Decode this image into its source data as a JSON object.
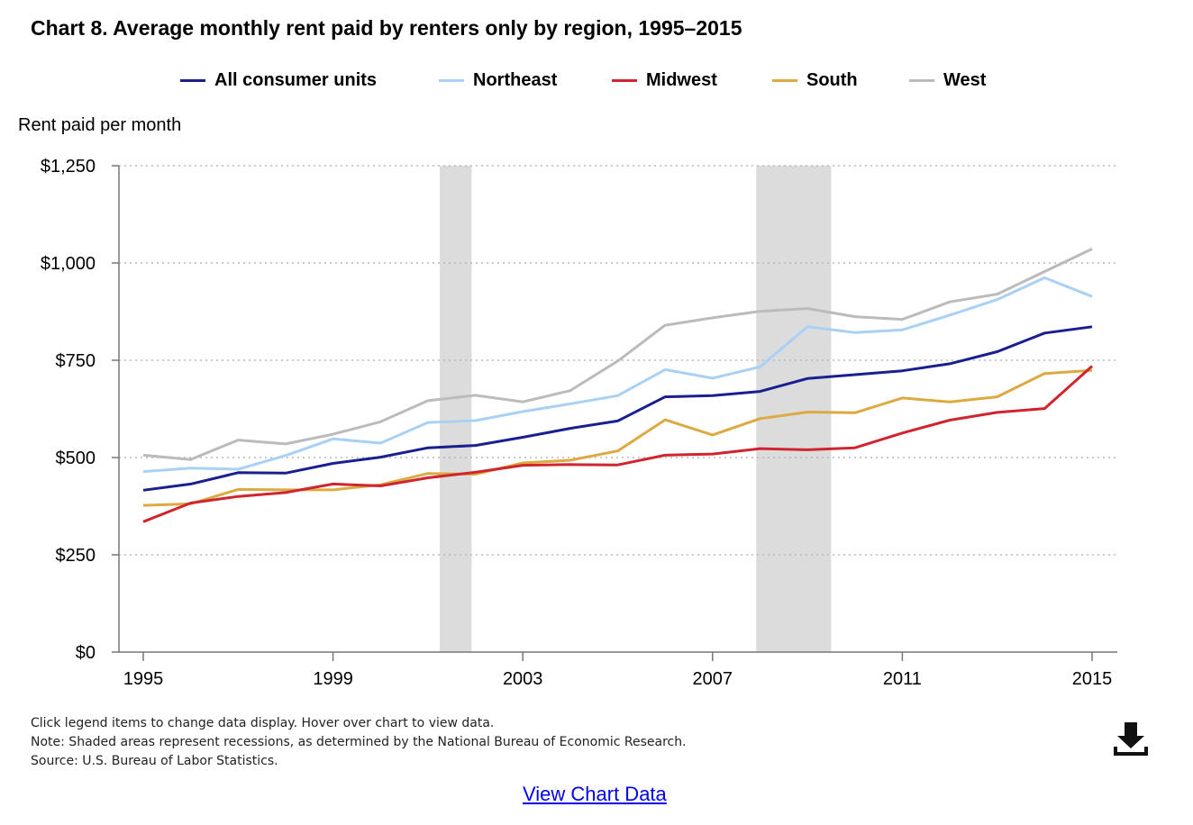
{
  "title": "Chart 8. Average monthly rent paid by renters only by region, 1995–2015",
  "notes": {
    "line1": "Click legend items to change data display. Hover over chart to view data.",
    "line2": "Note: Shaded areas represent recessions, as determined by the National Bureau of Economic Research.",
    "line3": "Source: U.S. Bureau of Labor Statistics."
  },
  "view_link": "View Chart Data",
  "download_icon": "download-icon",
  "chart_data": {
    "type": "line",
    "ylabel": "Rent paid per month",
    "xlabel": "",
    "ylim": [
      0,
      1250
    ],
    "yticks": [
      0,
      250,
      500,
      750,
      1000,
      1250
    ],
    "ytick_labels": [
      "$0",
      "$250",
      "$500",
      "$750",
      "$1,000",
      "$1,250"
    ],
    "xticks": [
      1995,
      1999,
      2003,
      2007,
      2011,
      2015
    ],
    "xtick_labels": [
      "1995",
      "1999",
      "2003",
      "2007",
      "2011",
      "2015"
    ],
    "grid": "horizontal dotted",
    "legend_position": "top",
    "x": [
      1995,
      1996,
      1997,
      1998,
      1999,
      2000,
      2001,
      2002,
      2003,
      2004,
      2005,
      2006,
      2007,
      2008,
      2009,
      2010,
      2011,
      2012,
      2013,
      2014,
      2015
    ],
    "recessions": [
      [
        2001.25,
        2001.92
      ],
      [
        2007.92,
        2009.5
      ]
    ],
    "series": [
      {
        "name": "All consumer units",
        "color": "#1a1f8f",
        "values": [
          416,
          432,
          461,
          460,
          485,
          501,
          525,
          531,
          552,
          575,
          594,
          656,
          659,
          670,
          703,
          713,
          723,
          741,
          772,
          820,
          836
        ]
      },
      {
        "name": "Northeast",
        "color": "#a9d0f5",
        "values": [
          464,
          473,
          470,
          505,
          548,
          537,
          590,
          595,
          618,
          638,
          659,
          726,
          704,
          733,
          836,
          821,
          828,
          866,
          906,
          962,
          914
        ]
      },
      {
        "name": "Midwest",
        "color": "#d0242e",
        "values": [
          335,
          383,
          400,
          410,
          432,
          427,
          448,
          462,
          480,
          482,
          481,
          506,
          509,
          523,
          520,
          525,
          563,
          596,
          616,
          626,
          735
        ]
      },
      {
        "name": "South",
        "color": "#dcaa40",
        "values": [
          377,
          381,
          418,
          417,
          417,
          430,
          459,
          457,
          486,
          493,
          517,
          597,
          558,
          600,
          617,
          615,
          653,
          643,
          656,
          716,
          724
        ]
      },
      {
        "name": "West",
        "color": "#bbbbbb",
        "values": [
          506,
          495,
          545,
          535,
          560,
          592,
          646,
          660,
          643,
          672,
          748,
          840,
          859,
          876,
          883,
          862,
          855,
          900,
          920,
          978,
          1036
        ]
      }
    ]
  }
}
